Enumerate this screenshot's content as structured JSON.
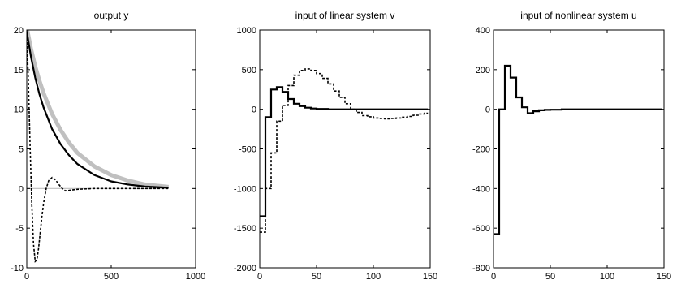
{
  "chart_data": [
    {
      "type": "line",
      "title": "output y",
      "xlim": [
        0,
        1000
      ],
      "ylim": [
        -10,
        20
      ],
      "xticks": [
        0,
        500,
        1000
      ],
      "yticks": [
        -10,
        -5,
        0,
        5,
        10,
        15,
        20
      ],
      "xtick_labels": [
        "0",
        "500",
        "1000"
      ],
      "ytick_labels": [
        "-10",
        "-5",
        "0",
        "5",
        "10",
        "15",
        "20"
      ],
      "grid": false,
      "series": [
        {
          "style": "gray-band",
          "x": [
            0,
            25,
            50,
            75,
            100,
            150,
            200,
            250,
            300,
            400,
            500,
            600,
            700,
            840
          ],
          "y": [
            20.3,
            17.6,
            15.4,
            13.6,
            12.0,
            9.4,
            7.4,
            5.8,
            4.5,
            2.8,
            1.7,
            1.0,
            0.5,
            0.2
          ]
        },
        {
          "style": "gray-line",
          "x": [
            0,
            840
          ],
          "y": [
            0,
            0
          ]
        },
        {
          "style": "solid",
          "x": [
            0,
            25,
            50,
            75,
            100,
            150,
            200,
            250,
            300,
            400,
            500,
            600,
            700,
            840
          ],
          "y": [
            19.8,
            16.6,
            14.0,
            11.9,
            10.2,
            7.5,
            5.6,
            4.2,
            3.1,
            1.7,
            0.9,
            0.5,
            0.25,
            0.1
          ]
        },
        {
          "style": "dashed",
          "x": [
            0,
            10,
            20,
            30,
            40,
            50,
            60,
            70,
            80,
            90,
            100,
            115,
            130,
            150,
            170,
            190,
            210,
            230,
            260,
            300,
            400,
            500,
            600,
            700,
            840
          ],
          "y": [
            20,
            13,
            5,
            -2,
            -7,
            -9.2,
            -9.0,
            -7.5,
            -5.5,
            -3.5,
            -1.8,
            0.0,
            1.0,
            1.4,
            1.1,
            0.5,
            0.0,
            -0.3,
            -0.2,
            -0.1,
            0,
            0,
            0,
            0,
            0
          ]
        }
      ]
    },
    {
      "type": "line",
      "title": "input of linear system v",
      "xlim": [
        0,
        150
      ],
      "ylim": [
        -2000,
        1000
      ],
      "xticks": [
        0,
        50,
        100,
        150
      ],
      "yticks": [
        -2000,
        -1500,
        -1000,
        -500,
        0,
        500,
        1000
      ],
      "xtick_labels": [
        "0",
        "50",
        "100",
        "150"
      ],
      "ytick_labels": [
        "-2000",
        "-1500",
        "-1000",
        "-500",
        "0",
        "500",
        "1000"
      ],
      "grid": false,
      "series": [
        {
          "style": "solid",
          "step": true,
          "x": [
            0,
            5,
            10,
            15,
            20,
            25,
            30,
            35,
            40,
            45,
            50,
            60,
            70,
            80,
            90,
            100,
            110,
            120,
            130,
            140,
            148
          ],
          "y": [
            -1350,
            -100,
            250,
            280,
            220,
            130,
            70,
            40,
            20,
            10,
            5,
            0,
            0,
            0,
            0,
            0,
            0,
            0,
            0,
            0,
            0
          ]
        },
        {
          "style": "dashed",
          "step": true,
          "x": [
            0,
            5,
            10,
            15,
            20,
            25,
            30,
            35,
            40,
            45,
            50,
            55,
            60,
            65,
            70,
            75,
            80,
            85,
            90,
            95,
            100,
            105,
            110,
            115,
            120,
            125,
            130,
            135,
            140,
            145,
            148
          ],
          "y": [
            -1550,
            -1000,
            -550,
            -150,
            50,
            300,
            430,
            490,
            510,
            490,
            450,
            390,
            320,
            230,
            150,
            70,
            0,
            -40,
            -80,
            -95,
            -110,
            -115,
            -120,
            -115,
            -110,
            -100,
            -90,
            -75,
            -60,
            -50,
            -50
          ]
        }
      ]
    },
    {
      "type": "line",
      "title": "input of nonlinear system u",
      "xlim": [
        0,
        150
      ],
      "ylim": [
        -800,
        400
      ],
      "xticks": [
        0,
        50,
        100,
        150
      ],
      "yticks": [
        -800,
        -600,
        -400,
        -200,
        0,
        200,
        400
      ],
      "xtick_labels": [
        "0",
        "50",
        "100",
        "150"
      ],
      "ytick_labels": [
        "-800",
        "-600",
        "-400",
        "-200",
        "0",
        "200",
        "400"
      ],
      "grid": false,
      "series": [
        {
          "style": "solid",
          "step": true,
          "x": [
            0,
            5,
            10,
            15,
            20,
            25,
            30,
            35,
            40,
            45,
            50,
            60,
            70,
            80,
            90,
            100,
            110,
            120,
            130,
            140,
            148
          ],
          "y": [
            -630,
            0,
            220,
            160,
            60,
            10,
            -20,
            -10,
            -5,
            -3,
            -2,
            0,
            0,
            0,
            0,
            0,
            0,
            0,
            0,
            0,
            0
          ]
        }
      ]
    }
  ]
}
